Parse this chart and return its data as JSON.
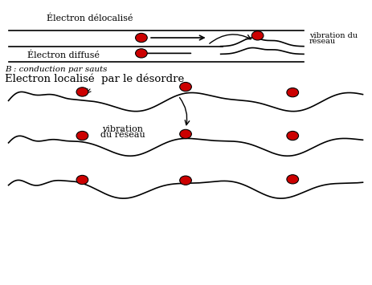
{
  "bg_color": "#ffffff",
  "line_color": "#000000",
  "electron_color": "#cc0000",
  "electron_edge": "#000000",
  "text_color": "#000000",
  "label_delocalized": "Électron délocalisé",
  "label_vibration_du": "vibration du",
  "label_reseau": "réseau",
  "label_diffused": "Électron diffusé",
  "label_conduction": "B : conduction par sauts",
  "label_localized": "Electron localisé  par le désordre",
  "label_vibration_line1": "vibration",
  "label_vibration_line2": "du réseau"
}
